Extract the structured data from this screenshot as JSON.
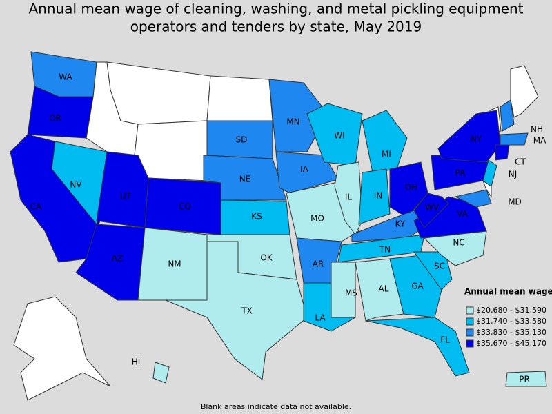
{
  "title": "Annual mean wage of cleaning, washing, and metal pickling equipment operators and tenders by state, May 2019",
  "legend": {
    "title": "Annual mean wage",
    "items": [
      {
        "label": "$20,680 - $31,590",
        "color": "#b0ecee"
      },
      {
        "label": "$31,740 - $33,580",
        "color": "#00bcf0"
      },
      {
        "label": "$33,830 - $35,130",
        "color": "#1e88f0"
      },
      {
        "label": "$35,670 - $45,170",
        "color": "#0000e8"
      }
    ]
  },
  "states": [
    {
      "label": "WA",
      "class": 2
    },
    {
      "label": "OR",
      "class": 3
    },
    {
      "label": "CA",
      "class": 3
    },
    {
      "label": "NV",
      "class": 1
    },
    {
      "label": "UT",
      "class": 3
    },
    {
      "label": "AZ",
      "class": 3
    },
    {
      "label": "CO",
      "class": 3
    },
    {
      "label": "NM",
      "class": 0
    },
    {
      "label": "SD",
      "class": 2
    },
    {
      "label": "NE",
      "class": 2
    },
    {
      "label": "KS",
      "class": 1
    },
    {
      "label": "OK",
      "class": 0
    },
    {
      "label": "TX",
      "class": 0
    },
    {
      "label": "MN",
      "class": 2
    },
    {
      "label": "IA",
      "class": 2
    },
    {
      "label": "MO",
      "class": 0
    },
    {
      "label": "AR",
      "class": 2
    },
    {
      "label": "LA",
      "class": 1
    },
    {
      "label": "WI",
      "class": 1
    },
    {
      "label": "IL",
      "class": 0
    },
    {
      "label": "MI",
      "class": 1
    },
    {
      "label": "IN",
      "class": 1
    },
    {
      "label": "OH",
      "class": 3
    },
    {
      "label": "KY",
      "class": 2
    },
    {
      "label": "TN",
      "class": 1
    },
    {
      "label": "MS",
      "class": 0
    },
    {
      "label": "AL",
      "class": 0
    },
    {
      "label": "GA",
      "class": 1
    },
    {
      "label": "FL",
      "class": 1
    },
    {
      "label": "SC",
      "class": 1
    },
    {
      "label": "NC",
      "class": 0
    },
    {
      "label": "VA",
      "class": 3
    },
    {
      "label": "WV",
      "class": 3
    },
    {
      "label": "PA",
      "class": 3
    },
    {
      "label": "NY",
      "class": 3
    },
    {
      "label": "NH",
      "class": 2
    },
    {
      "label": "MA",
      "class": 2
    },
    {
      "label": "CT",
      "class": 3
    },
    {
      "label": "NJ",
      "class": 1
    },
    {
      "label": "MD",
      "class": 2
    },
    {
      "label": "HI",
      "class": 0
    },
    {
      "label": "PR",
      "class": 0
    }
  ],
  "footnote": "Blank areas indicate data not available."
}
